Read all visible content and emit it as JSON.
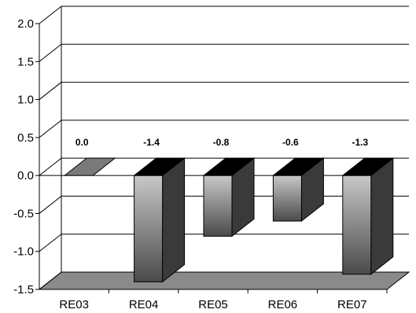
{
  "chart_data": {
    "type": "bar",
    "title": "",
    "xlabel": "",
    "ylabel": "",
    "categories": [
      "RE03",
      "RE04",
      "RE05",
      "RE06",
      "RE07"
    ],
    "values": [
      0.0,
      -1.4,
      -0.8,
      -0.6,
      -1.3
    ],
    "value_labels": [
      "0.0",
      "-1.4",
      "-0.8",
      "-0.6",
      "-1.3"
    ],
    "ylim": [
      -1.5,
      2.0
    ],
    "yticks": [
      2.0,
      1.5,
      1.0,
      0.5,
      0.0,
      -0.5,
      -1.0,
      -1.5
    ],
    "ytick_labels": [
      "2.0",
      "1.5",
      "1.0",
      "0.5",
      "0.0",
      "-0.5",
      "-1.0",
      "-1.5"
    ],
    "grid": true,
    "style": "3d-column"
  },
  "colors": {
    "bar_front_light": "#c8c8c8",
    "bar_front_dark": "#4a4a4a",
    "bar_side": "#3a3a3a",
    "bar_top": "#000000",
    "floor": "#8a8a8a",
    "grid": "#000000"
  }
}
